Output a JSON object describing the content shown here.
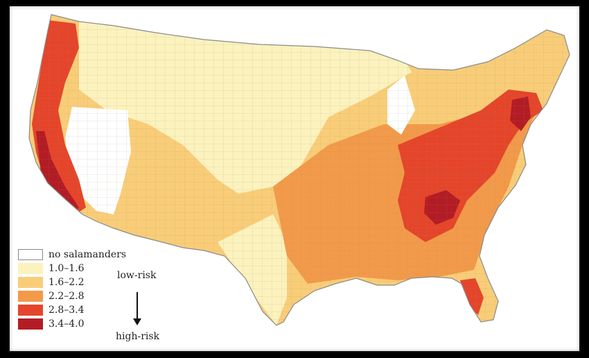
{
  "map": {
    "description_region": "Contiguous United States (county level)",
    "class_colors": {
      "none": "#ffffff",
      "c1": "#fbf2bd",
      "c2": "#f9cd78",
      "c3": "#f29a4a",
      "c4": "#e5452a",
      "c5": "#b31c24"
    },
    "border_color": "#8a8a8a"
  },
  "legend": {
    "items": [
      {
        "label": "no salamanders",
        "color": "#ffffff"
      },
      {
        "label": "1.0–1.6",
        "color": "#fbf2bd"
      },
      {
        "label": "1.6–2.2",
        "color": "#f9cd78"
      },
      {
        "label": "2.2–2.8",
        "color": "#f29a4a"
      },
      {
        "label": "2.8–3.4",
        "color": "#e5452a"
      },
      {
        "label": "3.4–4.0",
        "color": "#b31c24"
      }
    ],
    "low_label": "low-risk",
    "high_label": "high-risk"
  }
}
